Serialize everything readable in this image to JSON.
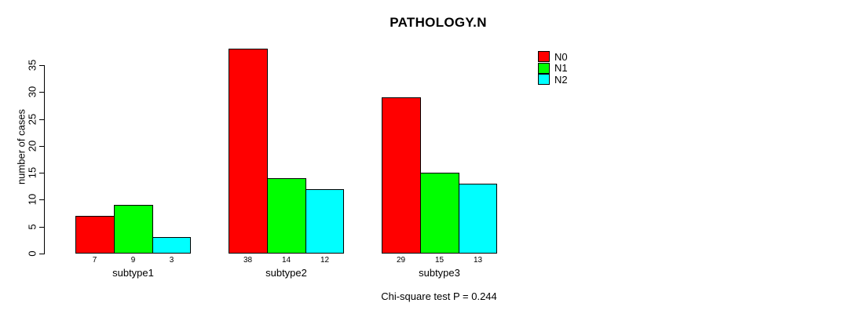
{
  "title": "PATHOLOGY.N",
  "y_axis": {
    "label": "number of cases",
    "ticks": [
      0,
      5,
      10,
      15,
      20,
      25,
      30,
      35
    ]
  },
  "legend": {
    "items": [
      {
        "label": "N0",
        "color": "#ff0000"
      },
      {
        "label": "N1",
        "color": "#00ff00"
      },
      {
        "label": "N2",
        "color": "#00ffff"
      }
    ]
  },
  "footer_note": "Chi-square test P = 0.244",
  "chart_data": {
    "type": "bar",
    "title": "PATHOLOGY.N",
    "xlabel": "",
    "ylabel": "number of cases",
    "ylim": [
      0,
      35
    ],
    "ytick_step": 5,
    "grid": false,
    "legend_position": "top-right",
    "categories": [
      "subtype1",
      "subtype2",
      "subtype3"
    ],
    "series": [
      {
        "name": "N0",
        "color": "#ff0000",
        "values": [
          7,
          38,
          29
        ]
      },
      {
        "name": "N1",
        "color": "#00ff00",
        "values": [
          9,
          14,
          15
        ]
      },
      {
        "name": "N2",
        "color": "#00ffff",
        "values": [
          3,
          12,
          13
        ]
      }
    ],
    "bar_value_labels": [
      [
        7,
        9,
        3
      ],
      [
        38,
        14,
        12
      ],
      [
        29,
        15,
        13
      ]
    ],
    "annotation": "Chi-square test P = 0.244"
  }
}
